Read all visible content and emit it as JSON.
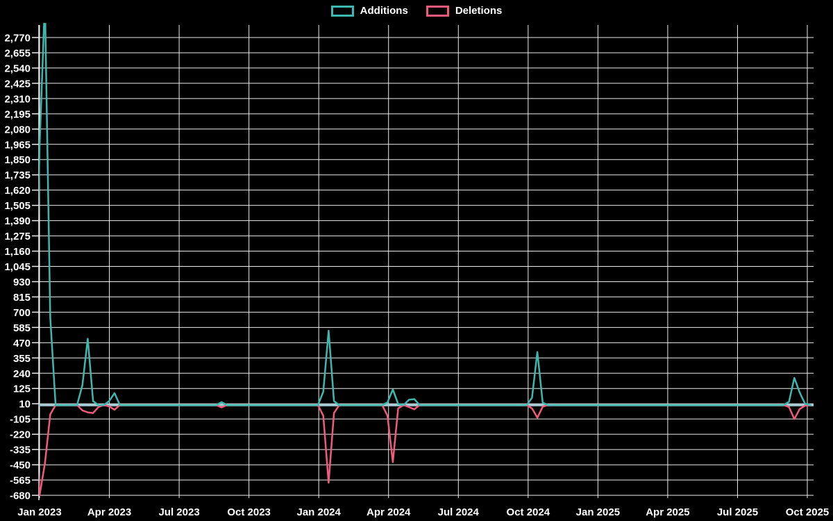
{
  "legend": {
    "items": [
      {
        "label": "Additions",
        "color": "#3db8af"
      },
      {
        "label": "Deletions",
        "color": "#f05b7d"
      }
    ]
  },
  "chart_data": {
    "type": "line",
    "title": "",
    "background": "#000000",
    "grid": true,
    "grid_color": "#ececec",
    "legend_position": "top",
    "x_axis": {
      "tick_labels": [
        "Jan 2023",
        "Apr 2023",
        "Jul 2023",
        "Oct 2023",
        "Jan 2024",
        "Apr 2024",
        "Jul 2024",
        "Oct 2024",
        "Jan 2025",
        "Apr 2025",
        "Jul 2025",
        "Oct 2025"
      ],
      "unit": "weeks since Jan 2023",
      "weeks_total": 145
    },
    "y_axis": {
      "min": -680,
      "max": 2770,
      "step": 115,
      "tick_labels": [
        "2,770",
        "2,655",
        "2,540",
        "2,425",
        "2,310",
        "2,195",
        "2,080",
        "1,965",
        "1,850",
        "1,735",
        "1,620",
        "1,505",
        "1,390",
        "1,275",
        "1,160",
        "1,045",
        "930",
        "815",
        "700",
        "585",
        "470",
        "355",
        "240",
        "125",
        "10",
        "-105",
        "-220",
        "-335",
        "-450",
        "-565",
        "-680"
      ]
    },
    "baseline": {
      "value": 0,
      "color": "#a3c7cf"
    },
    "series": [
      {
        "name": "Additions",
        "color": "#3db8af",
        "default_value": 0,
        "points": {
          "-1": 60,
          "0": 1950,
          "1": 3050,
          "2": 660,
          "8": 150,
          "9": 500,
          "10": 30,
          "13": 30,
          "14": 90,
          "34": 22,
          "53": 100,
          "54": 560,
          "55": 30,
          "65": 20,
          "66": 118,
          "67": 8,
          "69": 40,
          "70": 45,
          "92": 55,
          "93": 400,
          "94": 18,
          "140": 25,
          "141": 205,
          "142": 95,
          "143": 10
        }
      },
      {
        "name": "Deletions",
        "color": "#f05b7d",
        "default_value": 0,
        "points": {
          "-1": -60,
          "0": -680,
          "1": -440,
          "2": -70,
          "8": -40,
          "9": -55,
          "10": -60,
          "11": -15,
          "13": -10,
          "14": -35,
          "34": -18,
          "53": -80,
          "54": -585,
          "55": -60,
          "65": -80,
          "66": -430,
          "67": -25,
          "69": -15,
          "70": -32,
          "92": -25,
          "93": -95,
          "94": -12,
          "140": -15,
          "141": -105,
          "142": -30,
          "143": -5
        }
      }
    ]
  }
}
